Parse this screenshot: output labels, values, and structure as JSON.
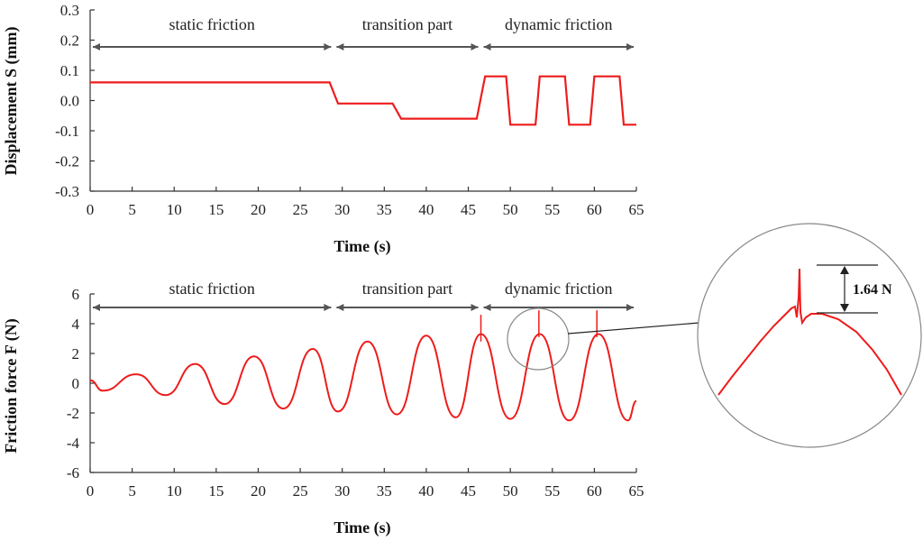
{
  "chart_data": [
    {
      "type": "line",
      "xlabel": "Time (s)",
      "ylabel": "Displacement S (mm)",
      "xlim": [
        0,
        65
      ],
      "ylim": [
        -0.3,
        0.3
      ],
      "xticks": [
        "0",
        "5",
        "10",
        "15",
        "20",
        "25",
        "30",
        "35",
        "40",
        "45",
        "50",
        "55",
        "60",
        "65"
      ],
      "yticks": [
        "0.3",
        "0.2",
        "0.1",
        "0.0",
        "-0.1",
        "-0.2",
        "-0.3"
      ],
      "grid": false,
      "color": "#ee1c1c",
      "regions": [
        {
          "label": "static friction",
          "start": 0,
          "end": 29
        },
        {
          "label": "transition part",
          "start": 29,
          "end": 46.5
        },
        {
          "label": "dynamic friction",
          "start": 46.5,
          "end": 65
        }
      ],
      "series": [
        {
          "x": [
            0,
            28.5,
            29.5,
            36,
            37,
            46,
            47,
            49.5,
            50,
            53,
            53.5,
            56.5,
            57,
            59.5,
            60,
            63,
            63.5,
            65
          ],
          "y": [
            0.06,
            0.06,
            -0.01,
            -0.01,
            -0.06,
            -0.06,
            0.08,
            0.08,
            -0.08,
            -0.08,
            0.08,
            0.08,
            -0.08,
            -0.08,
            0.08,
            0.08,
            -0.08,
            -0.08
          ]
        }
      ]
    },
    {
      "type": "line",
      "xlabel": "Time (s)",
      "ylabel": "Friction force F (N)",
      "xlim": [
        0,
        65
      ],
      "ylim": [
        -6,
        6
      ],
      "xticks": [
        "0",
        "5",
        "10",
        "15",
        "20",
        "25",
        "30",
        "35",
        "40",
        "45",
        "50",
        "55",
        "60",
        "65"
      ],
      "yticks": [
        "6",
        "4",
        "2",
        "0",
        "-2",
        "-4",
        "-6"
      ],
      "grid": false,
      "color": "#ee1c1c",
      "regions": [
        {
          "label": "static friction",
          "start": 0,
          "end": 29
        },
        {
          "label": "transition part",
          "start": 29,
          "end": 46.5
        },
        {
          "label": "dynamic friction",
          "start": 46.5,
          "end": 65
        }
      ],
      "series": [
        {
          "x": [
            0,
            1.5,
            5.5,
            9,
            12.5,
            16,
            19.5,
            23,
            26.5,
            29.5,
            33,
            36.5,
            40,
            43.5,
            46.5,
            50,
            53.5,
            57,
            60.5,
            64,
            65
          ],
          "y": [
            0.2,
            -0.5,
            0.6,
            -0.8,
            1.3,
            -1.4,
            1.8,
            -1.7,
            2.3,
            -1.9,
            2.8,
            -2.1,
            3.2,
            -2.3,
            3.3,
            -2.4,
            3.3,
            -2.5,
            3.3,
            -2.5,
            -1.2
          ]
        }
      ],
      "spikes": [
        {
          "x": 46.5,
          "y": 4.6
        },
        {
          "x": 53.4,
          "y": 4.9
        },
        {
          "x": 60.3,
          "y": 4.9
        }
      ],
      "inset": {
        "annotation": "1.64 N",
        "magnified_x": 53.4
      }
    }
  ]
}
